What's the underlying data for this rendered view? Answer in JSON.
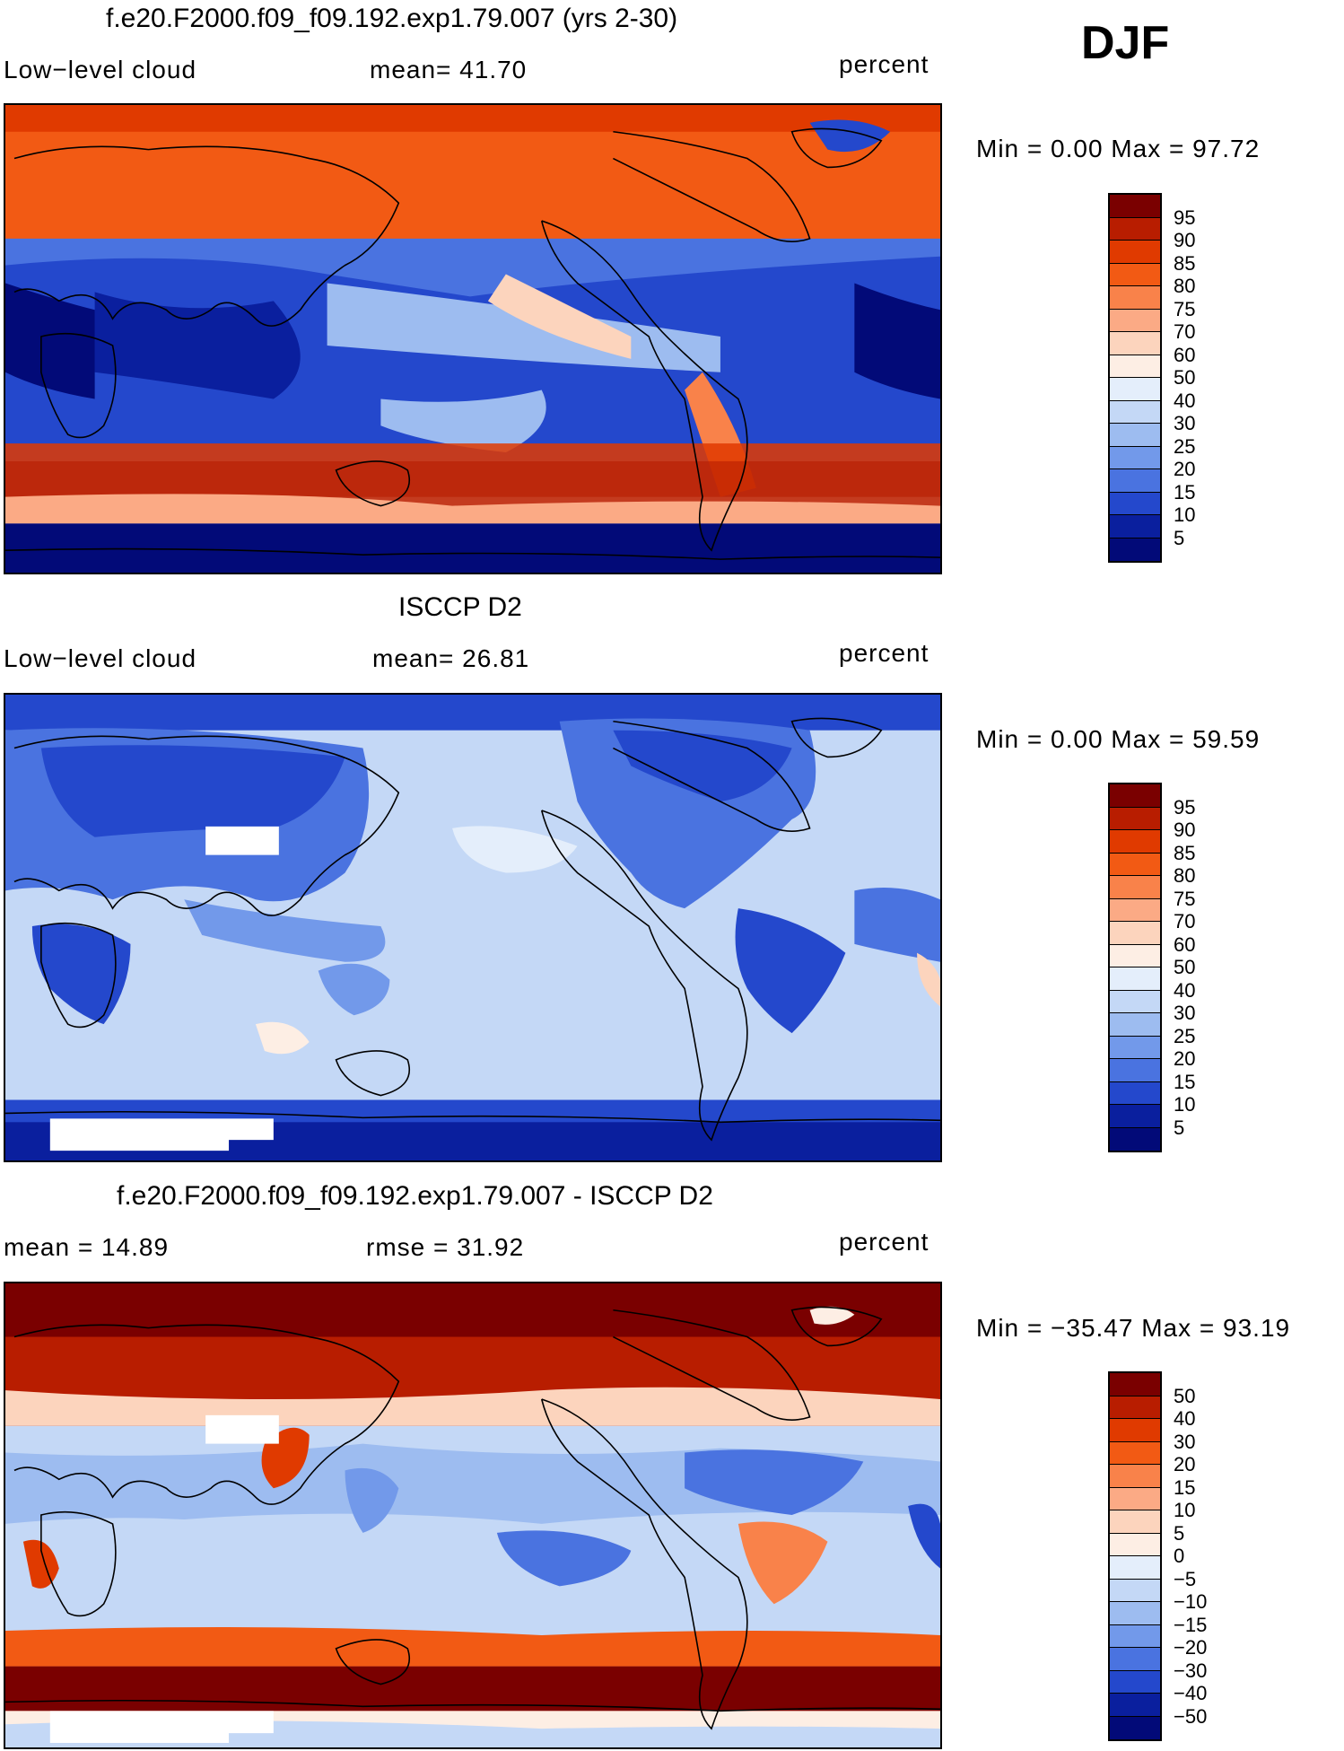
{
  "season": "DJF",
  "panels": [
    {
      "id": "model",
      "title": "f.e20.F2000.f09_f09.192.exp1.79.007 (yrs 2-30)",
      "left_label": "Low−level cloud",
      "mid_label": "mean=   41.70",
      "units": "percent",
      "minmax": "Min =    0.00 Max =   97.72",
      "levels": [
        "95",
        "90",
        "85",
        "80",
        "75",
        "70",
        "60",
        "50",
        "40",
        "30",
        "25",
        "20",
        "15",
        "10",
        "5"
      ],
      "colors": [
        "#7a0000",
        "#b81d00",
        "#e03a00",
        "#f25a14",
        "#f9824a",
        "#fbaa85",
        "#fcd4bd",
        "#fdeee4",
        "#e4eefb",
        "#c4d8f6",
        "#9dbcf0",
        "#7299ea",
        "#4a73e0",
        "#2448cc",
        "#0a1f9e",
        "#020a78"
      ]
    },
    {
      "id": "obs",
      "title": "ISCCP D2",
      "left_label": "Low−level cloud",
      "mid_label": "mean=   26.81",
      "units": "percent",
      "minmax": "Min =    0.00 Max =   59.59",
      "levels": [
        "95",
        "90",
        "85",
        "80",
        "75",
        "70",
        "60",
        "50",
        "40",
        "30",
        "25",
        "20",
        "15",
        "10",
        "5"
      ],
      "colors": [
        "#7a0000",
        "#b81d00",
        "#e03a00",
        "#f25a14",
        "#f9824a",
        "#fbaa85",
        "#fcd4bd",
        "#fdeee4",
        "#e4eefb",
        "#c4d8f6",
        "#9dbcf0",
        "#7299ea",
        "#4a73e0",
        "#2448cc",
        "#0a1f9e",
        "#020a78"
      ]
    },
    {
      "id": "diff",
      "title": "f.e20.F2000.f09_f09.192.exp1.79.007 - ISCCP D2",
      "left_label": "mean =   14.89",
      "mid_label": "rmse =   31.92",
      "units": "percent",
      "minmax": "Min = −35.47 Max =   93.19",
      "levels": [
        "50",
        "40",
        "30",
        "20",
        "15",
        "10",
        "5",
        "0",
        "−5",
        "−10",
        "−15",
        "−20",
        "−30",
        "−40",
        "−50"
      ],
      "colors": [
        "#7a0000",
        "#b81d00",
        "#e03a00",
        "#f25a14",
        "#f9824a",
        "#fbaa85",
        "#fcd4bd",
        "#fdeee4",
        "#e4eefb",
        "#c4d8f6",
        "#9dbcf0",
        "#7299ea",
        "#4a73e0",
        "#2448cc",
        "#0a1f9e",
        "#020a78"
      ]
    }
  ]
}
